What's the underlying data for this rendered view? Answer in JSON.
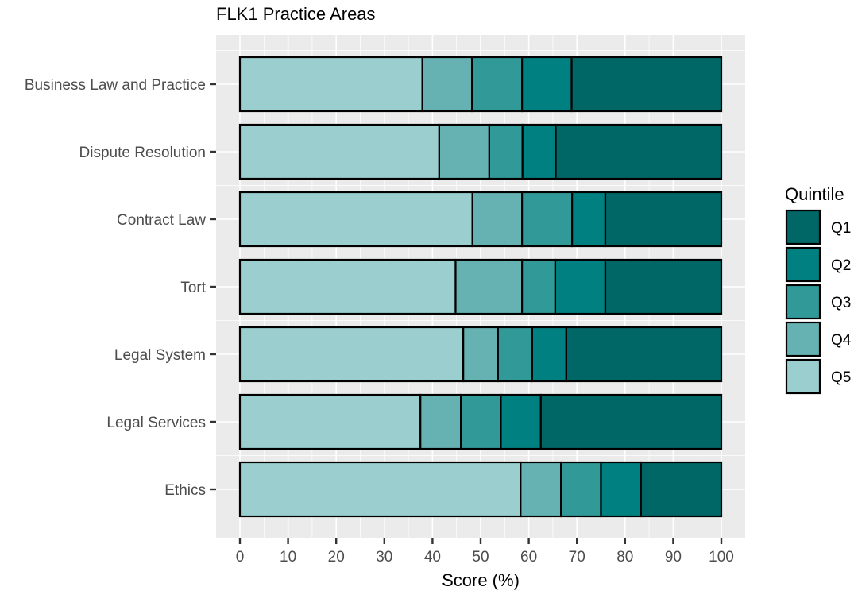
{
  "chart_data": {
    "type": "bar",
    "orientation": "horizontal",
    "stacked": true,
    "title": "FLK1 Practice Areas",
    "xlabel": "Score (%)",
    "ylabel": "",
    "xlim": [
      0,
      100
    ],
    "xticks": [
      0,
      10,
      20,
      30,
      40,
      50,
      60,
      70,
      80,
      90,
      100
    ],
    "grid": true,
    "legend_title": "Quintile",
    "legend_position": "right",
    "categories": [
      "Business Law and Practice",
      "Dispute Resolution",
      "Contract Law",
      "Tort",
      "Legal System",
      "Legal Services",
      "Ethics"
    ],
    "series": [
      {
        "name": "Q5",
        "color": "#9acecf",
        "values": [
          37.9,
          41.4,
          48.3,
          44.8,
          46.4,
          37.5,
          58.3
        ]
      },
      {
        "name": "Q4",
        "color": "#66b2b2",
        "values": [
          10.3,
          10.4,
          10.3,
          13.8,
          7.2,
          8.4,
          8.4
        ]
      },
      {
        "name": "Q3",
        "color": "#329999",
        "values": [
          10.4,
          6.9,
          10.4,
          6.9,
          7.1,
          8.3,
          8.3
        ]
      },
      {
        "name": "Q2",
        "color": "#008080",
        "values": [
          10.3,
          6.9,
          6.9,
          10.4,
          7.1,
          8.3,
          8.3
        ]
      },
      {
        "name": "Q1",
        "color": "#006666",
        "values": [
          31.1,
          34.4,
          24.1,
          24.1,
          32.2,
          37.5,
          16.7
        ]
      }
    ],
    "legend_order": [
      "Q1",
      "Q2",
      "Q3",
      "Q4",
      "Q5"
    ]
  }
}
